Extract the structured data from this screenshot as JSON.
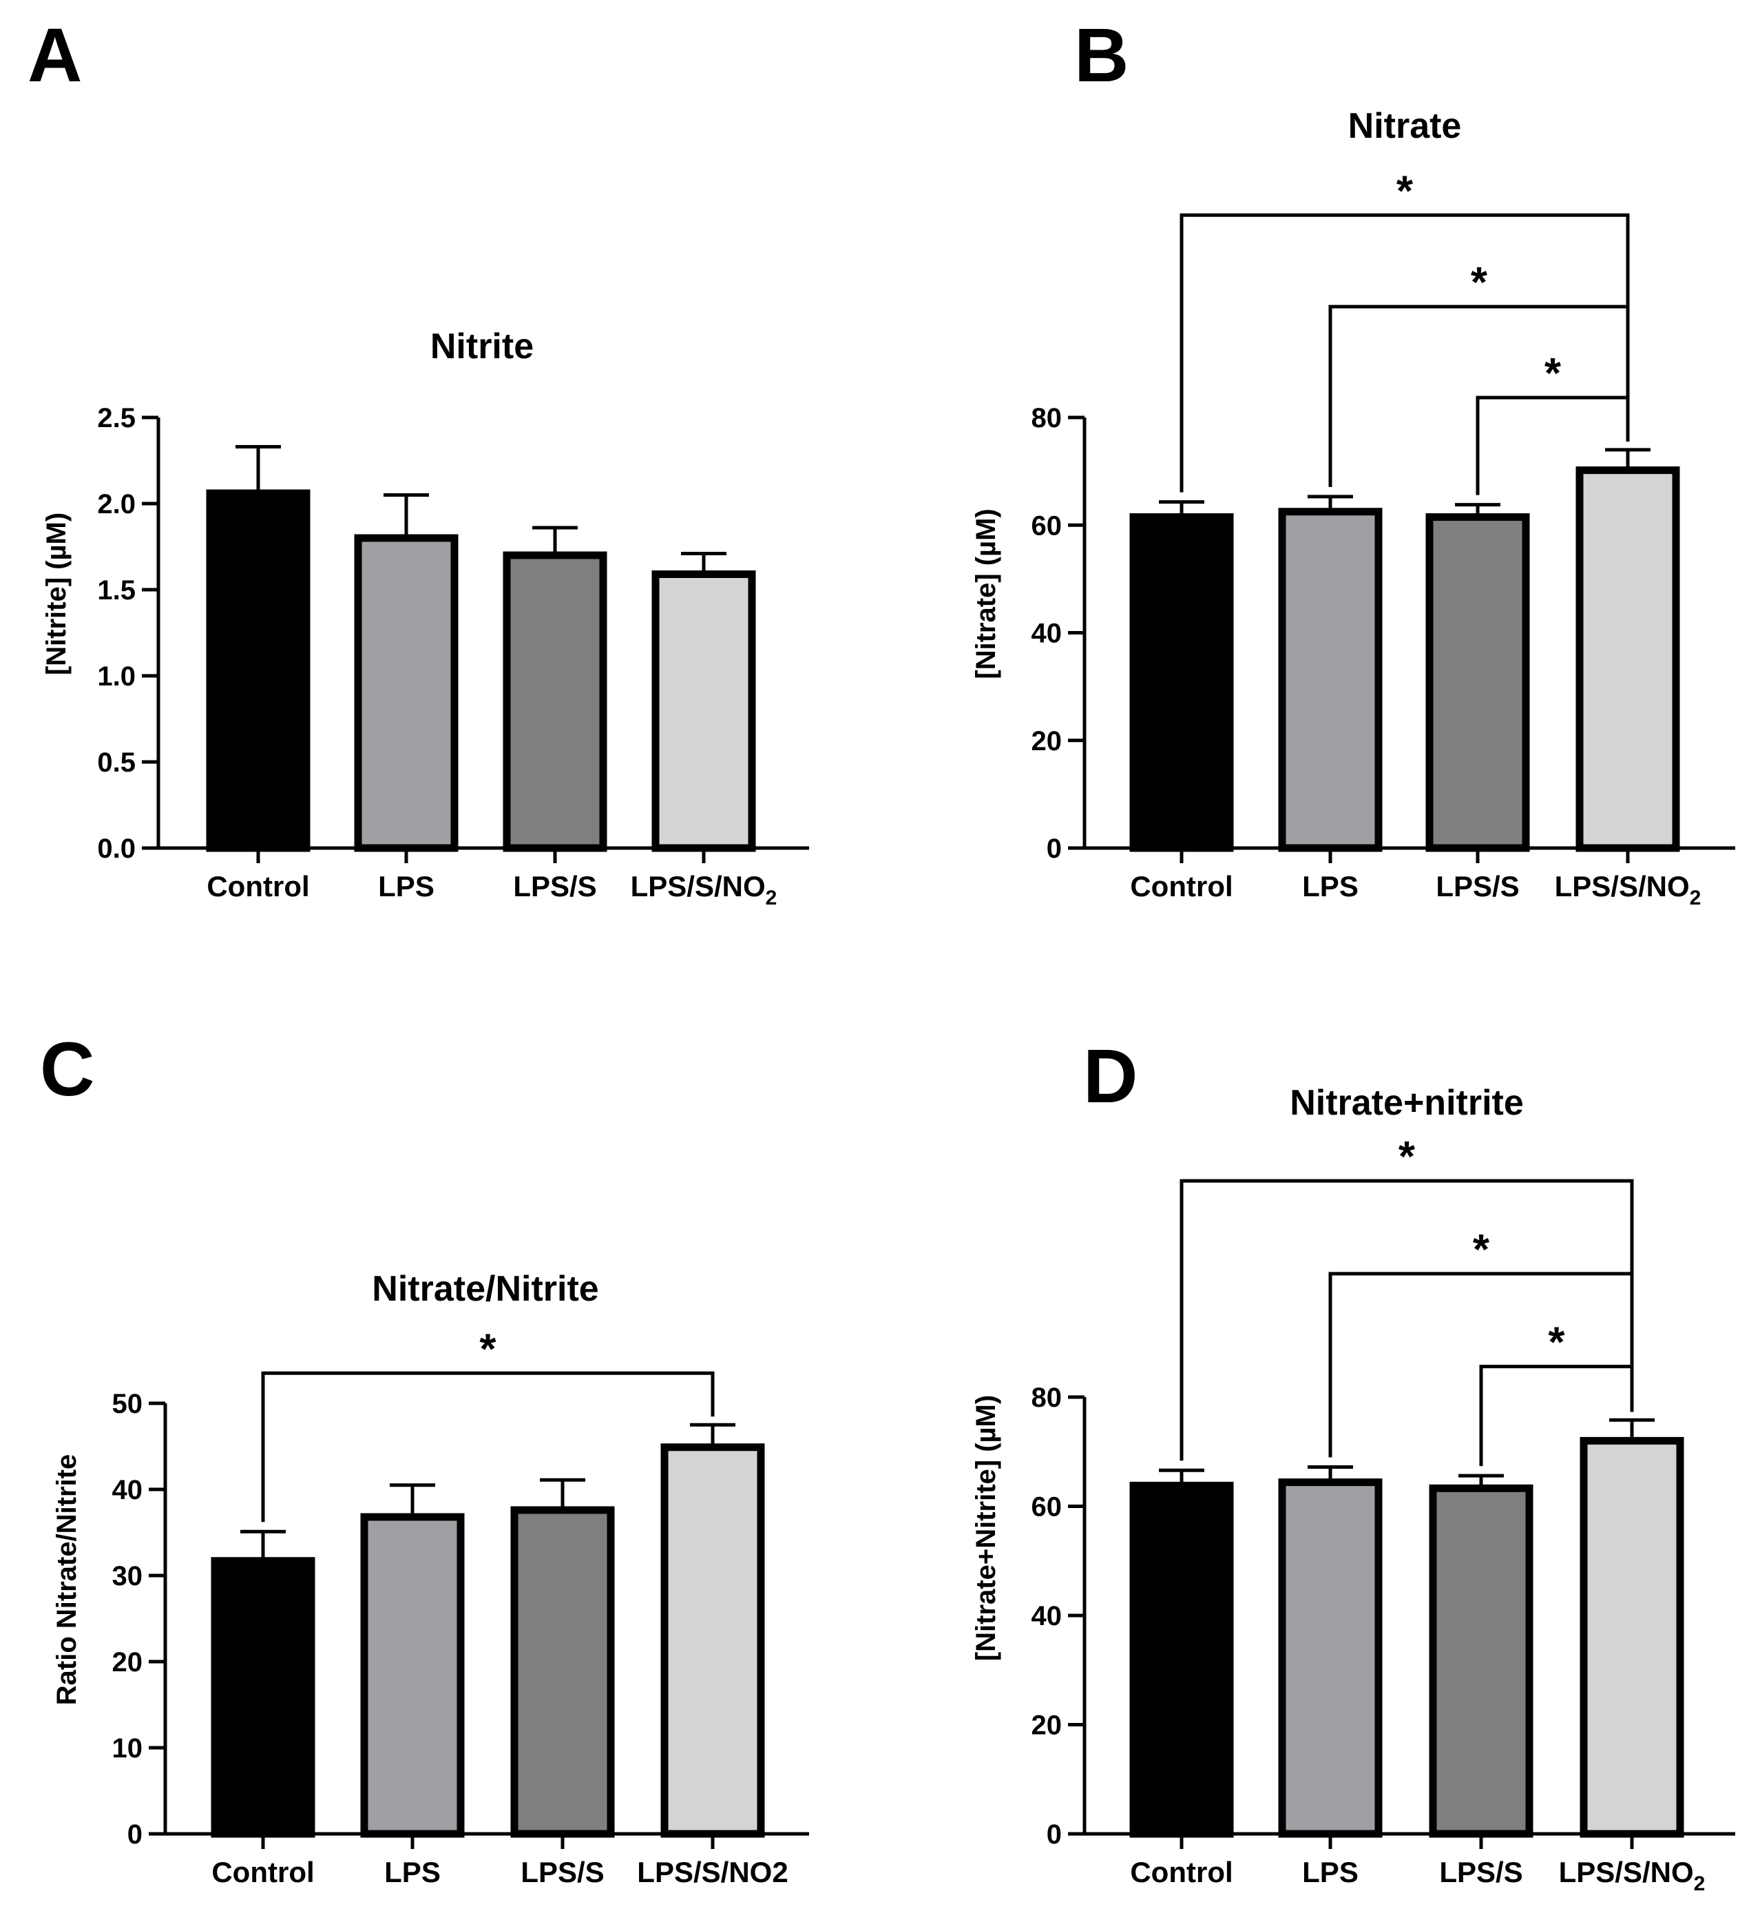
{
  "colors": {
    "Control": "#000000",
    "LPS": "#a0a0a4",
    "LPS/S": "#7f7f7f",
    "LPS/S/NO2": "#d4d4d4"
  },
  "chart_data": [
    {
      "panel": "A",
      "type": "bar",
      "title": "Nitrite",
      "ylabel": "[Nitrite] (µM)",
      "categories": [
        {
          "base": "Control",
          "sub": ""
        },
        {
          "base": "LPS",
          "sub": ""
        },
        {
          "base": "LPS/S",
          "sub": ""
        },
        {
          "base": "LPS/S/NO",
          "sub": "2"
        }
      ],
      "values": [
        2.06,
        1.8,
        1.7,
        1.59
      ],
      "errors": [
        0.27,
        0.25,
        0.16,
        0.12
      ],
      "ylim": [
        0,
        2.5
      ],
      "yticks": [
        "0.0",
        "0.5",
        "1.0",
        "1.5",
        "2.0",
        "2.5"
      ],
      "significance": []
    },
    {
      "panel": "B",
      "type": "bar",
      "title": "Nitrate",
      "ylabel": "[Nitrate] (µM)",
      "categories": [
        {
          "base": "Control",
          "sub": ""
        },
        {
          "base": "LPS",
          "sub": ""
        },
        {
          "base": "LPS/S",
          "sub": ""
        },
        {
          "base": "LPS/S/NO",
          "sub": "2"
        }
      ],
      "values": [
        61.5,
        62.5,
        61.5,
        70.2
      ],
      "errors": [
        2.8,
        2.8,
        2.3,
        3.8
      ],
      "ylim": [
        0,
        80
      ],
      "yticks": [
        "0",
        "20",
        "40",
        "60",
        "80"
      ],
      "significance": [
        {
          "from": 0,
          "to": 3,
          "label": "*",
          "y": 117.6
        },
        {
          "from": 1,
          "to": 3,
          "label": "*",
          "y": 100.6
        },
        {
          "from": 2,
          "to": 3,
          "label": "*",
          "y": 83.7
        }
      ]
    },
    {
      "panel": "C",
      "type": "bar",
      "title": "Nitrate/Nitrite",
      "ylabel": "Ratio Nitrate/Nitrite",
      "categories": [
        {
          "base": "Control",
          "sub": ""
        },
        {
          "base": "LPS",
          "sub": ""
        },
        {
          "base": "LPS/S",
          "sub": ""
        },
        {
          "base": "LPS/S/NO2",
          "sub": ""
        }
      ],
      "values": [
        31.7,
        36.8,
        37.6,
        44.9
      ],
      "errors": [
        3.4,
        3.7,
        3.5,
        2.6
      ],
      "ylim": [
        0,
        50
      ],
      "yticks": [
        "0",
        "10",
        "20",
        "30",
        "40",
        "50"
      ],
      "significance": [
        {
          "from": 0,
          "to": 3,
          "label": "*",
          "y": 53.5
        }
      ]
    },
    {
      "panel": "D",
      "type": "bar",
      "title": "Nitrate+nitrite",
      "ylabel": "[Nitrate+Nitrite] (µM)",
      "categories": [
        {
          "base": "Control",
          "sub": ""
        },
        {
          "base": "LPS",
          "sub": ""
        },
        {
          "base": "LPS/S",
          "sub": ""
        },
        {
          "base": "LPS/S/NO",
          "sub": "2"
        }
      ],
      "values": [
        63.8,
        64.4,
        63.3,
        72.0
      ],
      "errors": [
        2.8,
        2.8,
        2.3,
        3.8
      ],
      "ylim": [
        0,
        80
      ],
      "yticks": [
        "0",
        "20",
        "40",
        "60",
        "80"
      ],
      "significance": [
        {
          "from": 0,
          "to": 3,
          "label": "*",
          "y": 119.6
        },
        {
          "from": 1,
          "to": 3,
          "label": "*",
          "y": 102.6
        },
        {
          "from": 2,
          "to": 3,
          "label": "*",
          "y": 85.6
        }
      ]
    }
  ]
}
